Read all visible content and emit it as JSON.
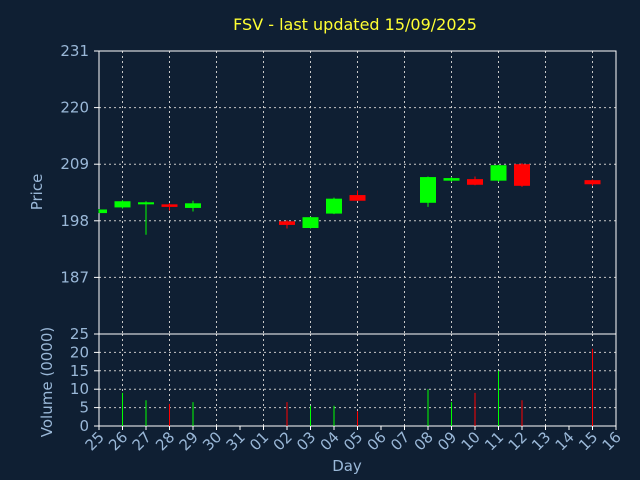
{
  "chart_data": {
    "type": "candlestick",
    "title": "FSV - last updated 15/09/2025",
    "xlabel": "Day",
    "ylabel_price": "Price",
    "ylabel_volume": "Volume (0000)",
    "x_ticks": [
      "25",
      "26",
      "27",
      "28",
      "29",
      "30",
      "31",
      "01",
      "02",
      "03",
      "04",
      "05",
      "06",
      "07",
      "08",
      "09",
      "10",
      "11",
      "12",
      "13",
      "14",
      "15",
      "16"
    ],
    "price_ticks": [
      187,
      198,
      209,
      220,
      231
    ],
    "price_ylim": [
      176,
      231
    ],
    "volume_ticks": [
      0,
      5,
      10,
      15,
      20,
      25
    ],
    "volume_ylim": [
      0,
      25
    ],
    "grid": true,
    "colors": {
      "up": "#00ff00",
      "down": "#ff0000",
      "title": "#ffff33",
      "axis_text": "#9ab8d8",
      "background": "#0f1f33"
    },
    "candles": [
      {
        "day": "25",
        "open": 199.5,
        "close": 200.2,
        "high": 200.3,
        "low": 199.5,
        "volume": 0
      },
      {
        "day": "26",
        "open": 200.6,
        "close": 201.8,
        "high": 202.0,
        "low": 200.4,
        "volume": 9
      },
      {
        "day": "27",
        "open": 201.2,
        "close": 201.6,
        "high": 201.8,
        "low": 195.3,
        "volume": 7
      },
      {
        "day": "28",
        "open": 201.2,
        "close": 200.7,
        "high": 201.4,
        "low": 200.0,
        "volume": 6
      },
      {
        "day": "29",
        "open": 200.5,
        "close": 201.4,
        "high": 201.9,
        "low": 199.8,
        "volume": 6.5
      },
      {
        "day": "02",
        "open": 197.9,
        "close": 197.2,
        "high": 198.1,
        "low": 196.5,
        "volume": 6.5
      },
      {
        "day": "03",
        "open": 196.6,
        "close": 198.7,
        "high": 198.8,
        "low": 196.5,
        "volume": 5.5
      },
      {
        "day": "04",
        "open": 199.4,
        "close": 202.3,
        "high": 202.5,
        "low": 199.3,
        "volume": 5.5
      },
      {
        "day": "05",
        "open": 203.0,
        "close": 201.9,
        "high": 203.9,
        "low": 201.9,
        "volume": 4
      },
      {
        "day": "08",
        "open": 201.5,
        "close": 206.5,
        "high": 206.6,
        "low": 200.7,
        "volume": 10
      },
      {
        "day": "09",
        "open": 205.8,
        "close": 206.3,
        "high": 206.5,
        "low": 205.6,
        "volume": 6.5
      },
      {
        "day": "10",
        "open": 206.1,
        "close": 205.0,
        "high": 206.6,
        "low": 204.9,
        "volume": 9
      },
      {
        "day": "11",
        "open": 205.8,
        "close": 208.8,
        "high": 208.9,
        "low": 205.6,
        "volume": 15
      },
      {
        "day": "12",
        "open": 209.0,
        "close": 204.8,
        "high": 209.2,
        "low": 204.6,
        "volume": 7
      },
      {
        "day": "15",
        "open": 205.9,
        "close": 205.1,
        "high": 206.0,
        "low": 204.8,
        "volume": 21
      }
    ]
  }
}
